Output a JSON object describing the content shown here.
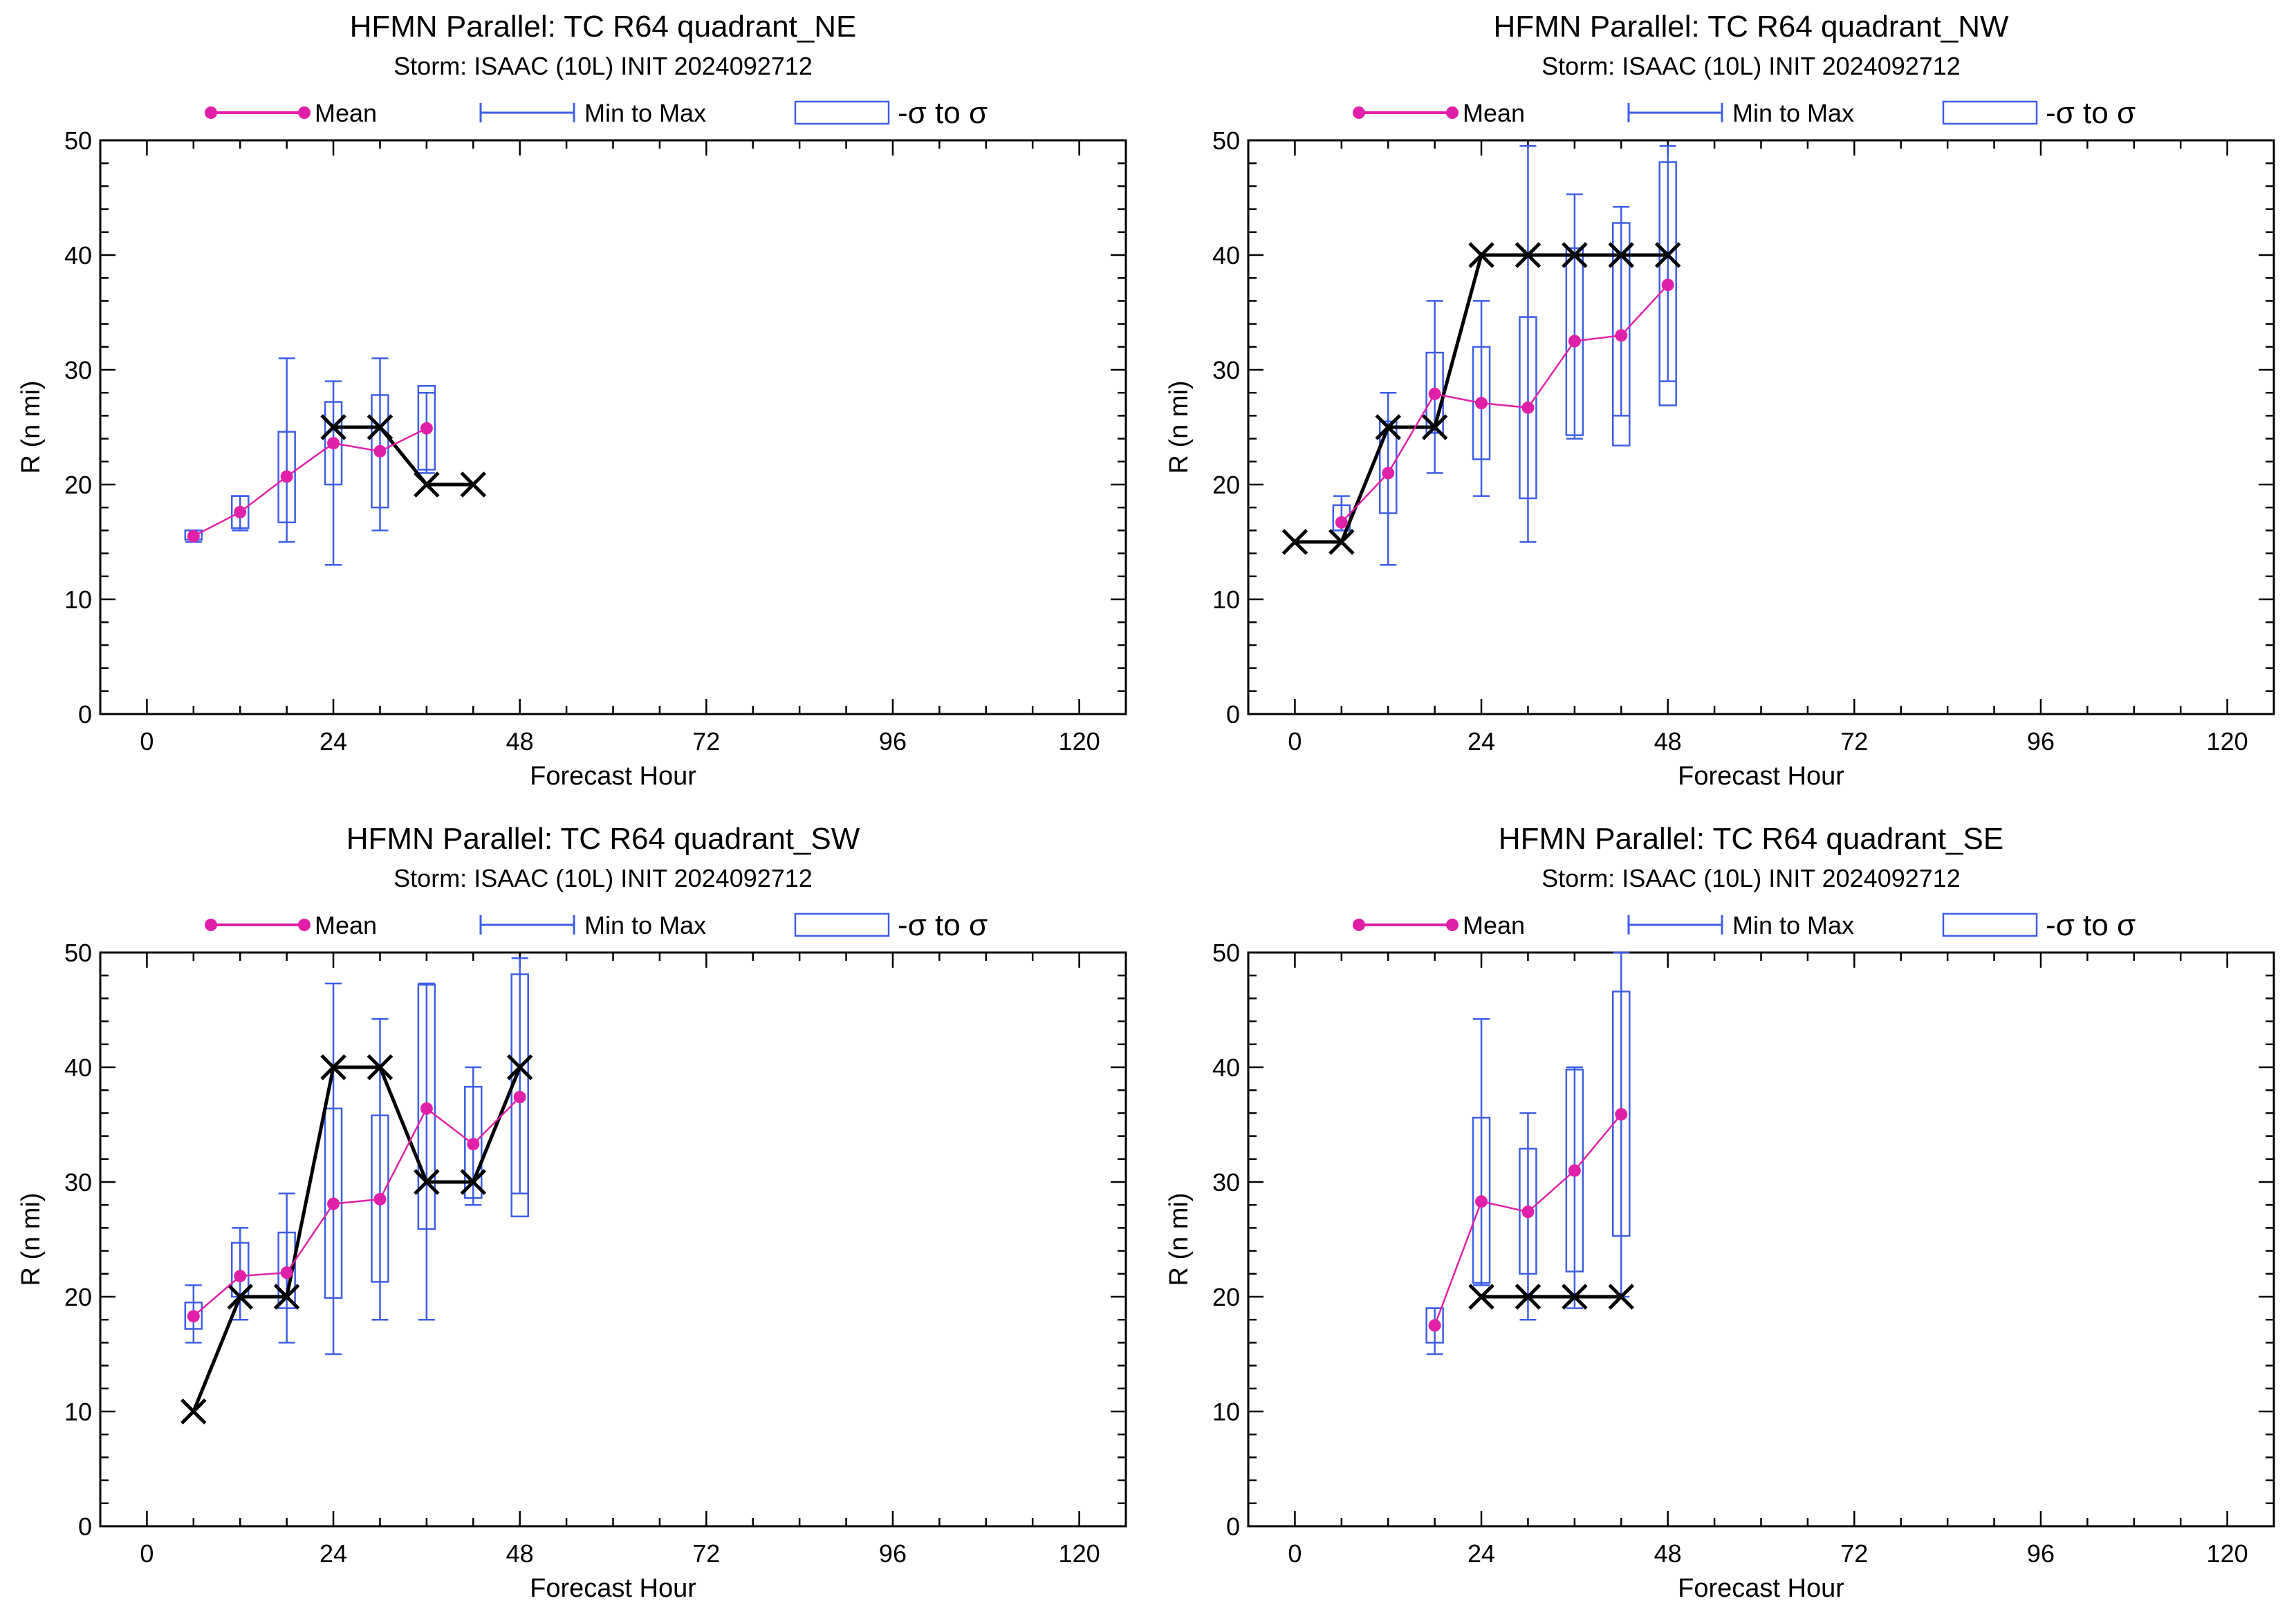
{
  "colors": {
    "mean": "#e020a8",
    "range": "#3c5ee6",
    "obs": "#000000",
    "axis": "#000000"
  },
  "legend": {
    "mean": "Mean",
    "range": "Min to Max",
    "sigma": "-σ to σ"
  },
  "chart_data": [
    {
      "type": "box",
      "title": "HFMN Parallel: TC  R64 quadrant_NE",
      "subtitle": "Storm: ISAAC (10L) INIT 2024092712",
      "xlabel": "Forecast Hour",
      "ylabel": "R (n mi)",
      "xlim": [
        -6,
        126
      ],
      "ylim": [
        0,
        50
      ],
      "xticks": [
        0,
        24,
        48,
        72,
        96,
        120
      ],
      "yticks": [
        0,
        10,
        20,
        30,
        40,
        50
      ],
      "ensemble": [
        {
          "x": 6,
          "min": 15,
          "max": 16,
          "lo": 15.2,
          "hi": 16.0,
          "mean": 15.5
        },
        {
          "x": 12,
          "min": 16,
          "max": 19,
          "lo": 16.2,
          "hi": 19.0,
          "mean": 17.6
        },
        {
          "x": 18,
          "min": 15,
          "max": 31,
          "lo": 16.7,
          "hi": 24.6,
          "mean": 20.7
        },
        {
          "x": 24,
          "min": 13,
          "max": 29,
          "lo": 20.0,
          "hi": 27.2,
          "mean": 23.6
        },
        {
          "x": 30,
          "min": 16,
          "max": 31,
          "lo": 18.0,
          "hi": 27.8,
          "mean": 22.9
        },
        {
          "x": 36,
          "min": 21,
          "max": 28,
          "lo": 21.3,
          "hi": 28.6,
          "mean": 24.9
        }
      ],
      "observed": [
        {
          "x": 24,
          "y": 25
        },
        {
          "x": 30,
          "y": 25
        },
        {
          "x": 36,
          "y": 20
        },
        {
          "x": 42,
          "y": 20
        }
      ]
    },
    {
      "type": "box",
      "title": "HFMN Parallel: TC  R64 quadrant_NW",
      "subtitle": "Storm: ISAAC (10L) INIT 2024092712",
      "xlabel": "Forecast Hour",
      "ylabel": "R (n mi)",
      "xlim": [
        -6,
        126
      ],
      "ylim": [
        0,
        50
      ],
      "xticks": [
        0,
        24,
        48,
        72,
        96,
        120
      ],
      "yticks": [
        0,
        10,
        20,
        30,
        40,
        50
      ],
      "ensemble": [
        {
          "x": 6,
          "min": 16,
          "max": 19,
          "lo": 16.0,
          "hi": 18.2,
          "mean": 16.7
        },
        {
          "x": 12,
          "min": 13,
          "max": 28,
          "lo": 17.5,
          "hi": 25.5,
          "mean": 21.0
        },
        {
          "x": 18,
          "min": 21,
          "max": 36,
          "lo": 24.5,
          "hi": 31.5,
          "mean": 27.9
        },
        {
          "x": 24,
          "min": 19,
          "max": 36,
          "lo": 22.2,
          "hi": 32.0,
          "mean": 27.1
        },
        {
          "x": 30,
          "min": 15,
          "max": 49.5,
          "lo": 18.8,
          "hi": 34.6,
          "mean": 26.7
        },
        {
          "x": 36,
          "min": 24,
          "max": 45.3,
          "lo": 24.3,
          "hi": 40.6,
          "mean": 32.5
        },
        {
          "x": 42,
          "min": 26,
          "max": 44.2,
          "lo": 23.4,
          "hi": 42.8,
          "mean": 33.0
        },
        {
          "x": 48,
          "min": 29,
          "max": 49.5,
          "lo": 26.9,
          "hi": 48.1,
          "mean": 37.4
        }
      ],
      "observed": [
        {
          "x": 0,
          "y": 15
        },
        {
          "x": 6,
          "y": 15
        },
        {
          "x": 12,
          "y": 25
        },
        {
          "x": 18,
          "y": 25
        },
        {
          "x": 24,
          "y": 40
        },
        {
          "x": 30,
          "y": 40
        },
        {
          "x": 36,
          "y": 40
        },
        {
          "x": 42,
          "y": 40
        },
        {
          "x": 48,
          "y": 40
        }
      ]
    },
    {
      "type": "box",
      "title": "HFMN Parallel: TC  R64 quadrant_SW",
      "subtitle": "Storm: ISAAC (10L) INIT 2024092712",
      "xlabel": "Forecast Hour",
      "ylabel": "R (n mi)",
      "xlim": [
        -6,
        126
      ],
      "ylim": [
        0,
        50
      ],
      "xticks": [
        0,
        24,
        48,
        72,
        96,
        120
      ],
      "yticks": [
        0,
        10,
        20,
        30,
        40,
        50
      ],
      "ensemble": [
        {
          "x": 6,
          "min": 16,
          "max": 21,
          "lo": 17.2,
          "hi": 19.5,
          "mean": 18.3
        },
        {
          "x": 12,
          "min": 18,
          "max": 26,
          "lo": 20.0,
          "hi": 24.7,
          "mean": 21.8
        },
        {
          "x": 18,
          "min": 16,
          "max": 29,
          "lo": 19.0,
          "hi": 25.6,
          "mean": 22.1
        },
        {
          "x": 24,
          "min": 15,
          "max": 47.3,
          "lo": 19.9,
          "hi": 36.4,
          "mean": 28.1
        },
        {
          "x": 30,
          "min": 18,
          "max": 44.2,
          "lo": 21.3,
          "hi": 35.8,
          "mean": 28.5
        },
        {
          "x": 36,
          "min": 18,
          "max": 47.3,
          "lo": 25.9,
          "hi": 47.2,
          "mean": 36.4
        },
        {
          "x": 42,
          "min": 28,
          "max": 40.0,
          "lo": 28.6,
          "hi": 38.3,
          "mean": 33.3
        },
        {
          "x": 48,
          "min": 29,
          "max": 49.5,
          "lo": 27.0,
          "hi": 48.1,
          "mean": 37.4
        }
      ],
      "observed": [
        {
          "x": 6,
          "y": 10
        },
        {
          "x": 12,
          "y": 20
        },
        {
          "x": 18,
          "y": 20
        },
        {
          "x": 24,
          "y": 40
        },
        {
          "x": 30,
          "y": 40
        },
        {
          "x": 36,
          "y": 30
        },
        {
          "x": 42,
          "y": 30
        },
        {
          "x": 48,
          "y": 40
        }
      ]
    },
    {
      "type": "box",
      "title": "HFMN Parallel: TC  R64 quadrant_SE",
      "subtitle": "Storm: ISAAC (10L) INIT 2024092712",
      "xlabel": "Forecast Hour",
      "ylabel": "R (n mi)",
      "xlim": [
        -6,
        126
      ],
      "ylim": [
        0,
        50
      ],
      "xticks": [
        0,
        24,
        48,
        72,
        96,
        120
      ],
      "yticks": [
        0,
        10,
        20,
        30,
        40,
        50
      ],
      "ensemble": [
        {
          "x": 18,
          "min": 15,
          "max": 19,
          "lo": 16.0,
          "hi": 19.0,
          "mean": 17.5
        },
        {
          "x": 24,
          "min": 21,
          "max": 44.2,
          "lo": 21.2,
          "hi": 35.6,
          "mean": 28.3
        },
        {
          "x": 30,
          "min": 18,
          "max": 36,
          "lo": 22.0,
          "hi": 32.9,
          "mean": 27.4
        },
        {
          "x": 36,
          "min": 19,
          "max": 40,
          "lo": 22.2,
          "hi": 39.8,
          "mean": 31.0
        },
        {
          "x": 42,
          "min": 20,
          "max": 50,
          "lo": 25.3,
          "hi": 46.6,
          "mean": 35.9
        }
      ],
      "observed": [
        {
          "x": 24,
          "y": 20
        },
        {
          "x": 30,
          "y": 20
        },
        {
          "x": 36,
          "y": 20
        },
        {
          "x": 42,
          "y": 20
        }
      ]
    }
  ]
}
